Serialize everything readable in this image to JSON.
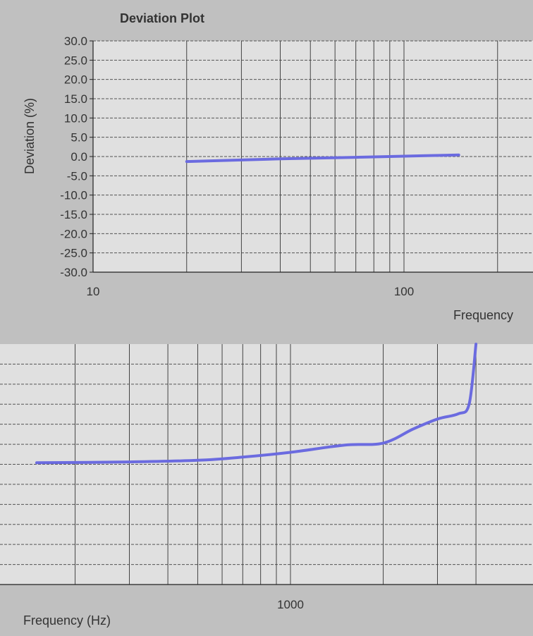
{
  "chart_data": [
    {
      "type": "line",
      "title": "Deviation Plot",
      "xlabel": "Frequency",
      "ylabel": "Deviation  (%)",
      "x_scale": "log",
      "xlim": [
        10,
        155
      ],
      "ylim": [
        -30,
        30
      ],
      "y_tick_labels": [
        "30.0",
        "25.0",
        "20.0",
        "15.0",
        "10.0",
        "5.0",
        "0.0",
        "-5.0",
        "-10.0",
        "-15.0",
        "-20.0",
        "-25.0",
        "-30.0"
      ],
      "x_tick_labels": [
        "10",
        "100"
      ],
      "grid": true,
      "series": [
        {
          "x": [
            20,
            40,
            70,
            100,
            150
          ],
          "y": [
            -1.3,
            -0.6,
            -0.2,
            0.1,
            0.4
          ]
        }
      ]
    },
    {
      "type": "line",
      "title": "",
      "xlabel": "Frequency (Hz)",
      "ylabel": "",
      "x_scale": "log",
      "xlim": [
        150,
        5500
      ],
      "ylim": [
        -30,
        30
      ],
      "x_tick_labels": [
        "1000"
      ],
      "grid": true,
      "series": [
        {
          "x": [
            150,
            300,
            500,
            700,
            1000,
            1500,
            2000,
            2500,
            3000,
            3500,
            3800,
            4000
          ],
          "y": [
            0.4,
            0.6,
            1.0,
            1.8,
            3.0,
            4.8,
            5.3,
            8.8,
            11.3,
            12.6,
            15.0,
            30.0
          ]
        }
      ]
    }
  ]
}
